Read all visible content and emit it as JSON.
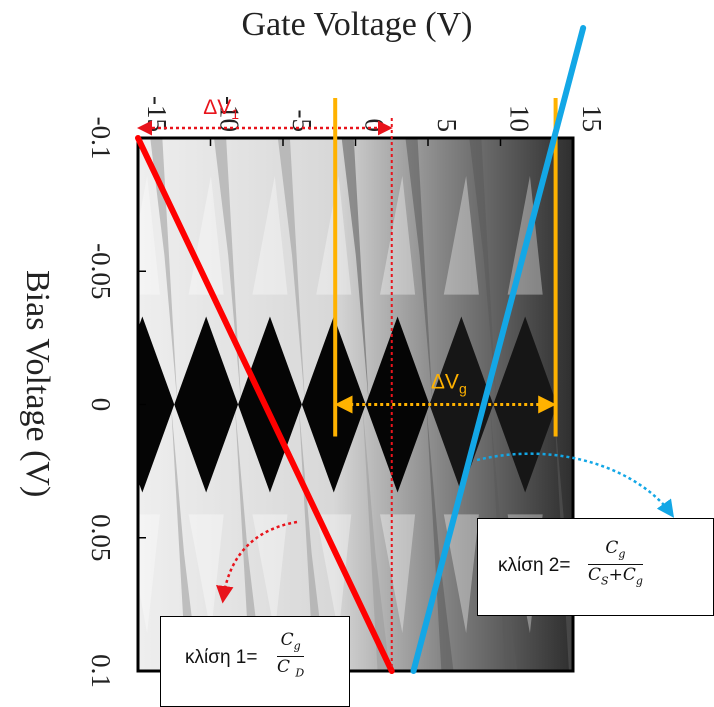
{
  "chart_data": {
    "type": "heatmap",
    "title": "",
    "xlabel": "Gate Voltage (V)",
    "ylabel": "Bias Voltage (V)",
    "gate_ticks": [
      "-15",
      "-10",
      "-5",
      "0",
      "5",
      "10",
      "15"
    ],
    "bias_ticks": [
      "-0.1",
      "-0.05",
      "0",
      "0.05",
      "0.1"
    ],
    "gate_range": [
      -15,
      15
    ],
    "bias_range": [
      -0.1,
      0.1
    ],
    "colormap": "grayscale (black = conducting, light gray = blockade)",
    "diamond_centers_gate_V": [
      -14.7,
      -10.3,
      -5.9,
      -1.5,
      2.9,
      7.3,
      11.7
    ],
    "diamond_period_gate_V": 4.4,
    "diamond_half_height_bias_V": 0.033,
    "annotations": {
      "delta_v1": {
        "label": "ΔV",
        "sub": "1",
        "color": "#e8141c"
      },
      "delta_vg": {
        "label": "ΔV",
        "sub": "g",
        "color": "#ffb200"
      },
      "slope1": {
        "prefix": "κλίση 1=",
        "numerator": "C",
        "numerator_sub": "g",
        "denominator": "C ",
        "denominator_sub": "D",
        "line_color": "#ff0000"
      },
      "slope2": {
        "prefix": "κλίση 2=",
        "numerator": "C",
        "numerator_sub": "g",
        "denominator_a": "C",
        "denominator_a_sub": "S",
        "denominator_plus": "+",
        "denominator_b": "C",
        "denominator_b_sub": "g",
        "line_color": "#13a7e6"
      }
    }
  }
}
